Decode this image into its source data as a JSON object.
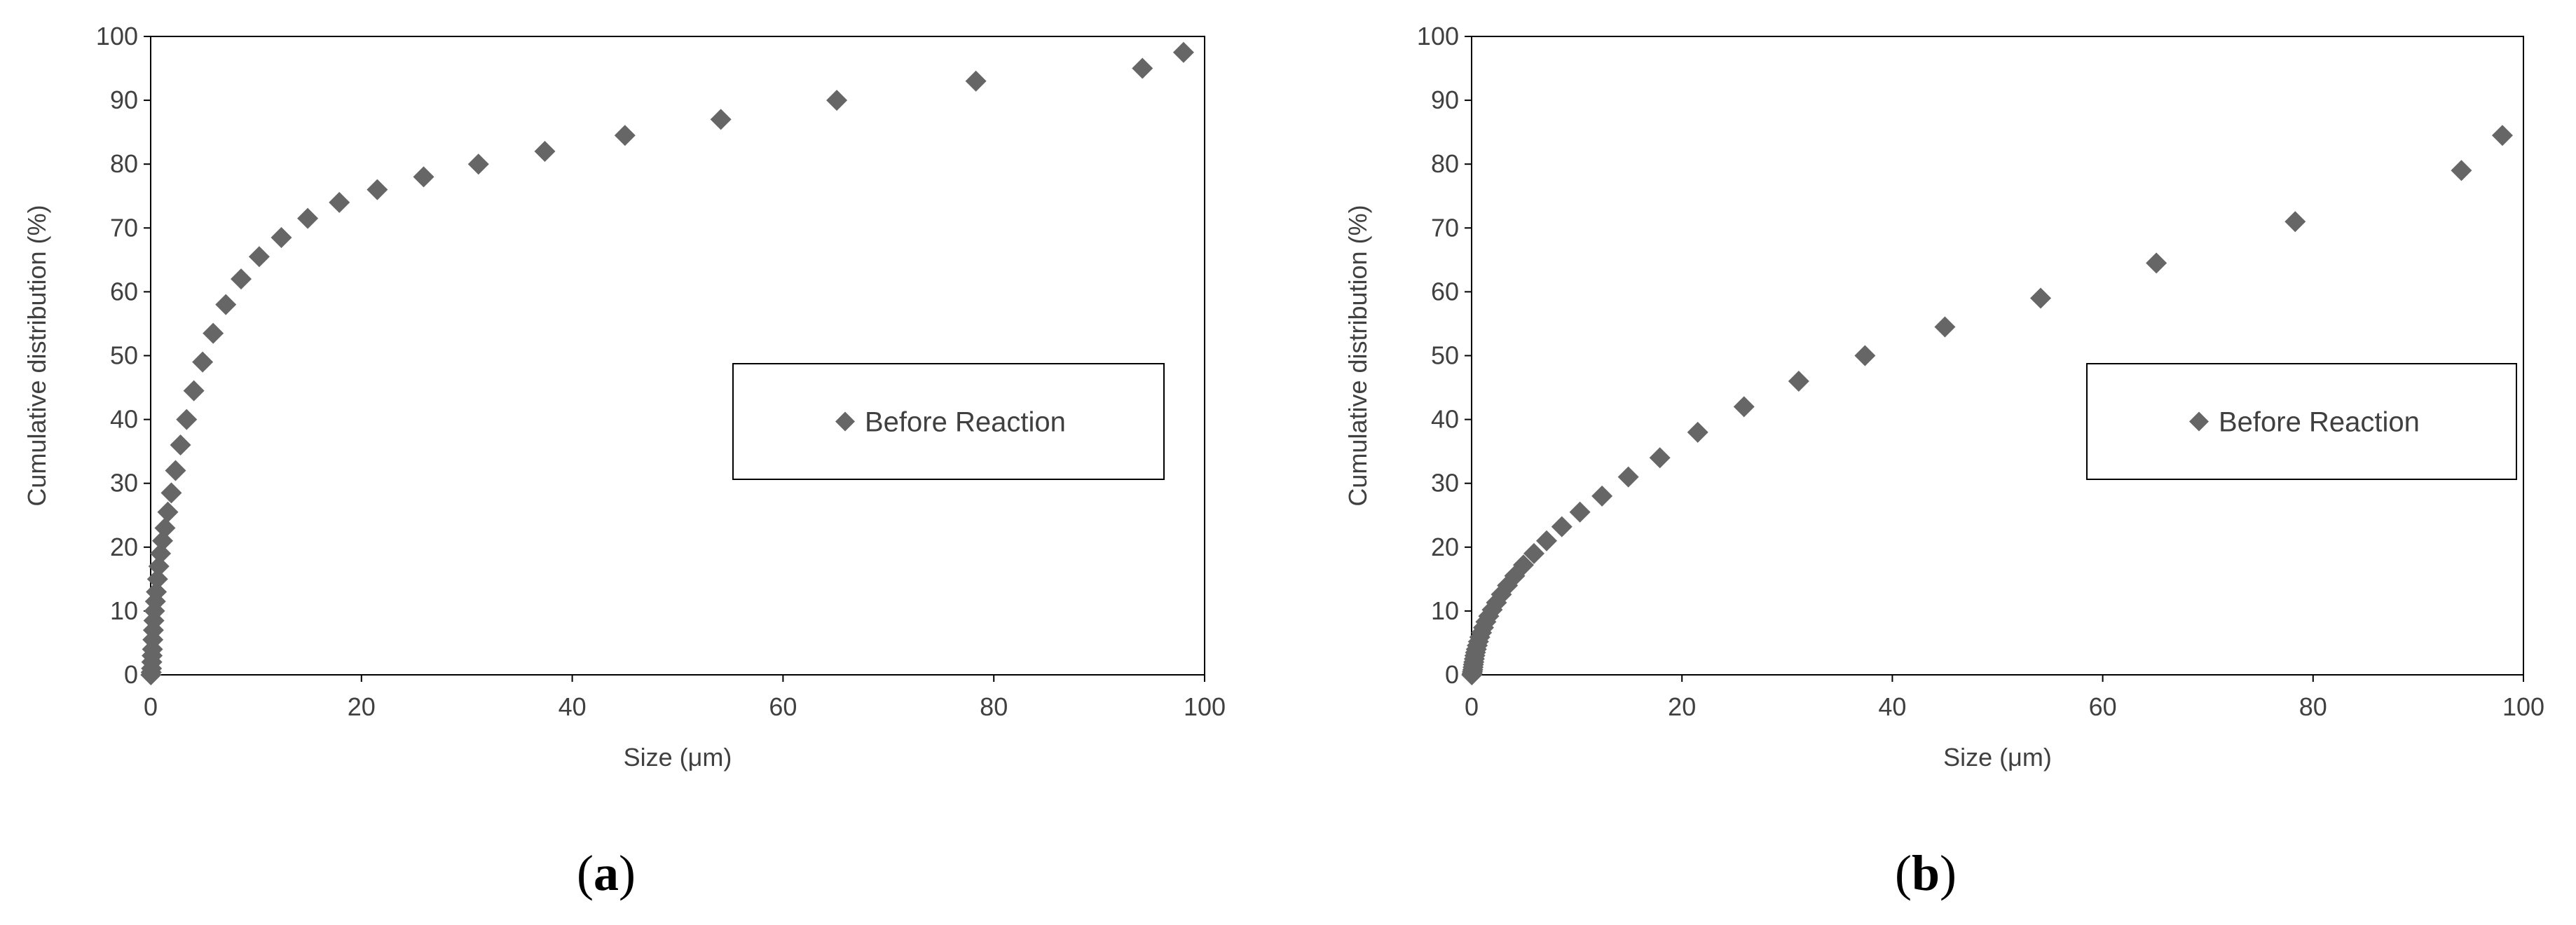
{
  "chart_data": [
    {
      "type": "scatter",
      "panel_label": "a",
      "xlabel": "Size (μm)",
      "ylabel": "Cumulative distribution (%)",
      "xlim": [
        0,
        100
      ],
      "ylim": [
        0,
        100
      ],
      "xticks": [
        "0",
        "20",
        "40",
        "60",
        "80",
        "100"
      ],
      "yticks": [
        "0",
        "10",
        "20",
        "30",
        "40",
        "50",
        "60",
        "70",
        "80",
        "90",
        "100"
      ],
      "legend_position": "right",
      "marker": "diamond",
      "marker_color": "#666666",
      "series": [
        {
          "name": "Before Reaction",
          "x": [
            0.02,
            0.05,
            0.08,
            0.11,
            0.14,
            0.17,
            0.21,
            0.26,
            0.31,
            0.37,
            0.45,
            0.54,
            0.65,
            0.78,
            0.94,
            1.13,
            1.36,
            1.63,
            1.96,
            2.36,
            2.83,
            3.41,
            4.1,
            4.93,
            5.93,
            7.13,
            8.58,
            10.3,
            12.4,
            14.9,
            17.9,
            21.5,
            25.9,
            31.1,
            37.4,
            45.0,
            54.1,
            65.1,
            78.3,
            94.1,
            98.0
          ],
          "y": [
            0,
            0.4,
            1,
            2,
            3,
            4,
            5.5,
            7,
            8.5,
            10,
            11.5,
            13,
            15,
            17,
            19,
            21,
            23,
            25.5,
            28.5,
            32,
            36,
            40,
            44.5,
            49,
            53.5,
            58,
            62,
            65.5,
            68.5,
            71.5,
            74,
            76,
            78,
            80,
            82,
            84.5,
            87,
            90,
            93,
            95,
            97.5
          ]
        }
      ]
    },
    {
      "type": "scatter",
      "panel_label": "b",
      "xlabel": "Size (μm)",
      "ylabel": "Cumulative distribution (%)",
      "xlim": [
        0,
        100
      ],
      "ylim": [
        0,
        100
      ],
      "xticks": [
        "0",
        "20",
        "40",
        "60",
        "80",
        "100"
      ],
      "yticks": [
        "0",
        "10",
        "20",
        "30",
        "40",
        "50",
        "60",
        "70",
        "80",
        "90",
        "100"
      ],
      "legend_position": "right",
      "marker": "diamond",
      "marker_color": "#666666",
      "series": [
        {
          "name": "Before Reaction",
          "x": [
            0.02,
            0.05,
            0.08,
            0.11,
            0.14,
            0.17,
            0.21,
            0.26,
            0.31,
            0.37,
            0.45,
            0.54,
            0.65,
            0.78,
            0.94,
            1.13,
            1.36,
            1.63,
            1.96,
            2.36,
            2.83,
            3.41,
            4.1,
            4.93,
            5.93,
            7.13,
            8.58,
            10.3,
            12.4,
            14.9,
            17.9,
            21.5,
            25.9,
            31.1,
            37.4,
            45.0,
            54.1,
            65.1,
            78.3,
            94.1,
            98.0
          ],
          "y": [
            0,
            0.2,
            0.5,
            0.8,
            1.2,
            1.6,
            2,
            2.5,
            3,
            3.5,
            4,
            4.6,
            5.2,
            5.9,
            6.6,
            7.4,
            8.3,
            9.2,
            10.2,
            11.3,
            12.6,
            14,
            15.5,
            17.2,
            19,
            21,
            23.2,
            25.5,
            28,
            31,
            34,
            38,
            42,
            46,
            50,
            54.5,
            59,
            64.5,
            71,
            79,
            84.5
          ]
        }
      ]
    }
  ]
}
